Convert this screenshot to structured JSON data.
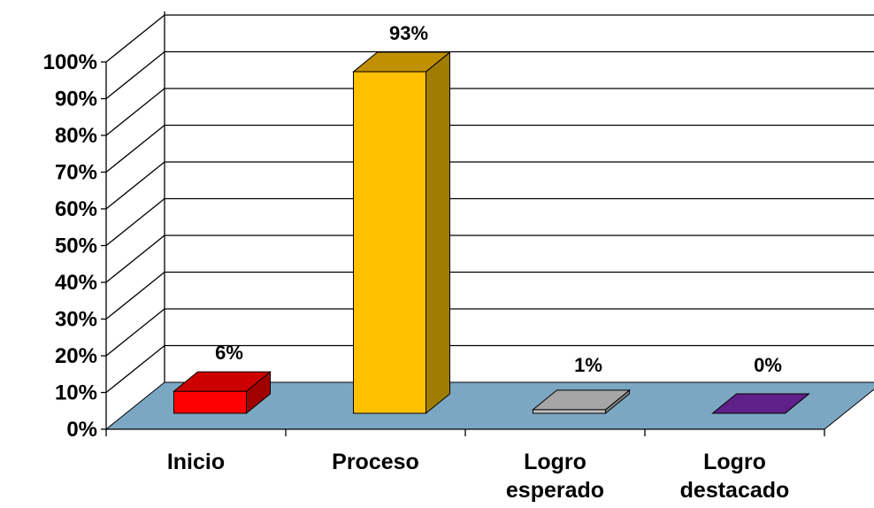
{
  "chart_data": {
    "type": "bar",
    "style": "3d",
    "title": "",
    "xlabel": "",
    "ylabel": "",
    "categories": [
      [
        "Inicio"
      ],
      [
        "Proceso"
      ],
      [
        "Logro",
        "esperado"
      ],
      [
        "Logro",
        "destacado"
      ]
    ],
    "values": [
      6,
      93,
      1,
      0
    ],
    "data_labels": [
      "6%",
      "93%",
      "1%",
      "0%"
    ],
    "yticks": [
      "0%",
      "10%",
      "20%",
      "30%",
      "40%",
      "50%",
      "60%",
      "70%",
      "80%",
      "90%",
      "100%"
    ],
    "ylim": [
      0,
      100
    ],
    "grid": true,
    "legend": "none",
    "colors": {
      "bars": [
        {
          "front": "#ff0000",
          "top": "#cc0000",
          "side": "#a00000"
        },
        {
          "front": "#ffc000",
          "top": "#c09000",
          "side": "#a07c00"
        },
        {
          "front": "#c0c0c0",
          "top": "#a6a6a6",
          "side": "#808080"
        },
        {
          "front": "#7030a0",
          "top": "#60208a",
          "side": "#4e1a70"
        }
      ],
      "floor": "#7ba7c2",
      "grid": "#000000"
    }
  }
}
